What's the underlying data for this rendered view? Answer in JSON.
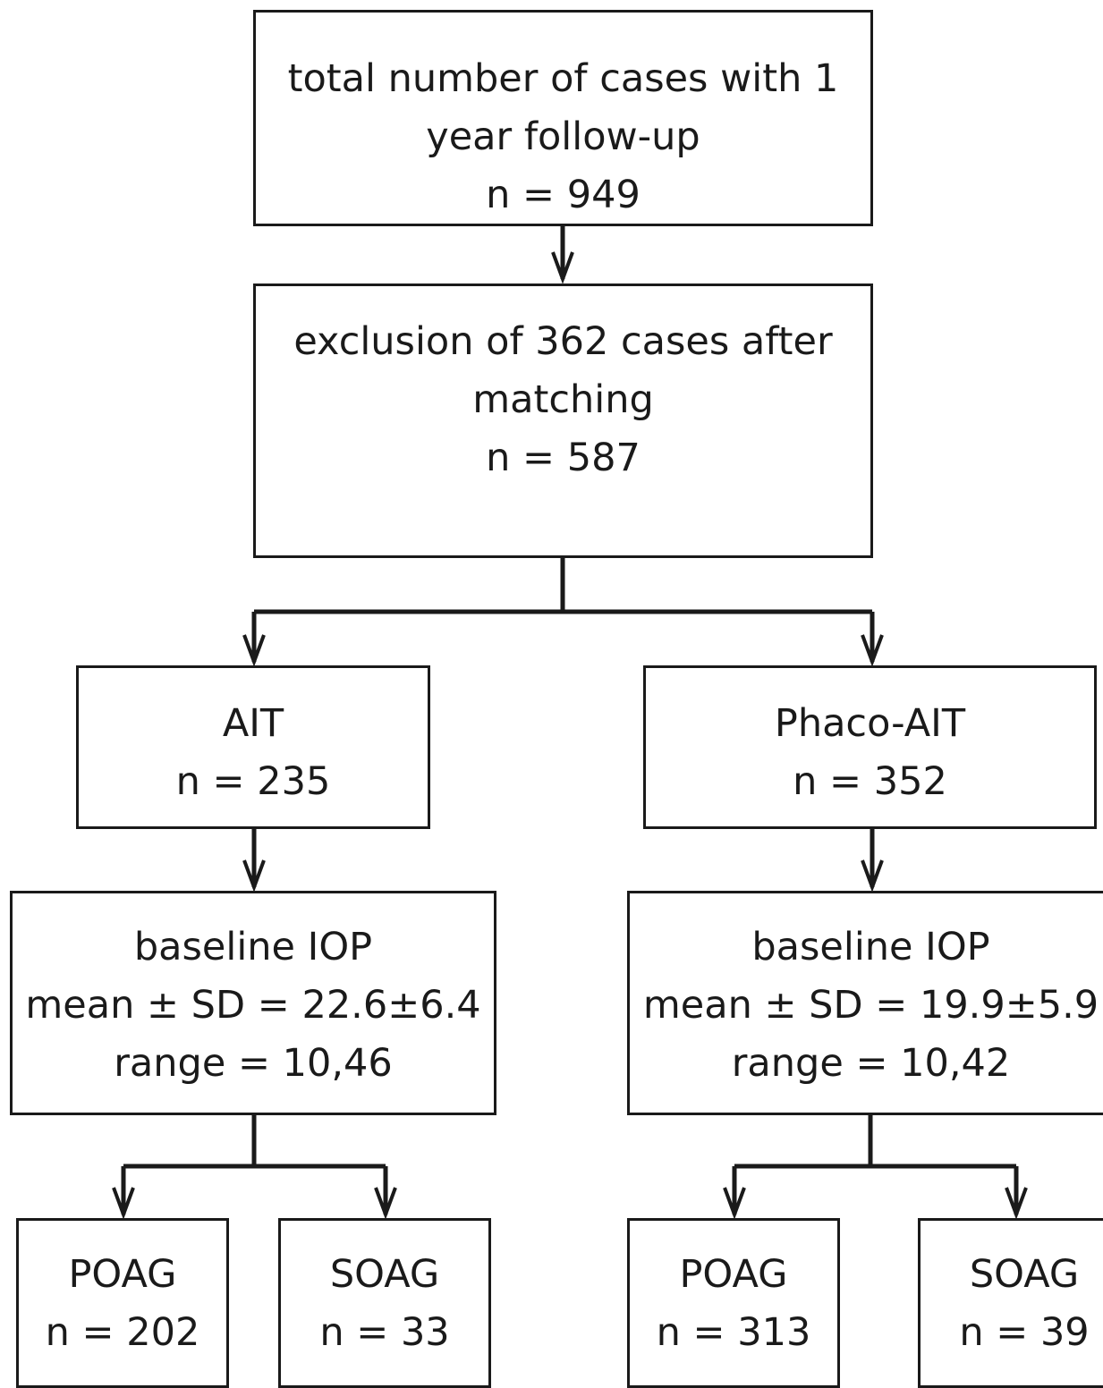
{
  "flowchart": {
    "total": {
      "line1": "total number of cases with 1",
      "line2": "year follow-up",
      "count": "n = 949"
    },
    "matched": {
      "line1": "exclusion of 362 cases after",
      "line2": "matching",
      "count": "n = 587"
    },
    "ait": {
      "label": "AIT",
      "count": "n = 235",
      "baseline": {
        "title": "baseline IOP",
        "mean": "mean ± SD = 22.6±6.4",
        "range": "range = 10,46"
      },
      "poag": {
        "label": "POAG",
        "count": "n = 202"
      },
      "soag": {
        "label": "SOAG",
        "count": "n = 33"
      }
    },
    "phaco_ait": {
      "label": "Phaco-AIT",
      "count": "n = 352",
      "baseline": {
        "title": "baseline IOP",
        "mean": "mean ± SD = 19.9±5.9",
        "range": "range = 10,42"
      },
      "poag": {
        "label": "POAG",
        "count": "n = 313"
      },
      "soag": {
        "label": "SOAG",
        "count": "n = 39"
      }
    }
  }
}
